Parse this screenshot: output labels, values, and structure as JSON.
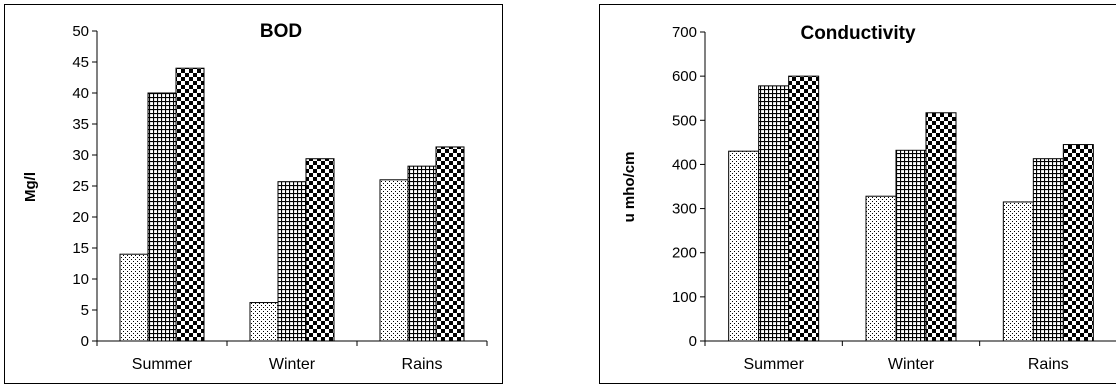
{
  "chart_data": [
    {
      "type": "bar",
      "title": "BOD",
      "ylabel": "Mg/l",
      "xlabel": "",
      "categories": [
        "Summer",
        "Winter",
        "Rains"
      ],
      "ylim": [
        0,
        50
      ],
      "yticks": [
        0,
        5,
        10,
        15,
        20,
        25,
        30,
        35,
        40,
        45,
        50
      ],
      "grid": false,
      "series": [
        {
          "pattern": "dots",
          "values": [
            14,
            6.2,
            26
          ]
        },
        {
          "pattern": "grid",
          "values": [
            40,
            25.7,
            28.2
          ]
        },
        {
          "pattern": "checker",
          "values": [
            44,
            29.4,
            31.3
          ]
        }
      ]
    },
    {
      "type": "bar",
      "title": "Conductivity",
      "ylabel": "u mho/cm",
      "xlabel": "",
      "categories": [
        "Summer",
        "Winter",
        "Rains"
      ],
      "ylim": [
        0,
        700
      ],
      "yticks": [
        0,
        100,
        200,
        300,
        400,
        500,
        600,
        700
      ],
      "grid": false,
      "series": [
        {
          "pattern": "dots",
          "values": [
            430,
            328,
            315
          ]
        },
        {
          "pattern": "grid",
          "values": [
            578,
            432,
            413
          ]
        },
        {
          "pattern": "checker",
          "values": [
            600,
            517,
            445
          ]
        }
      ]
    }
  ]
}
